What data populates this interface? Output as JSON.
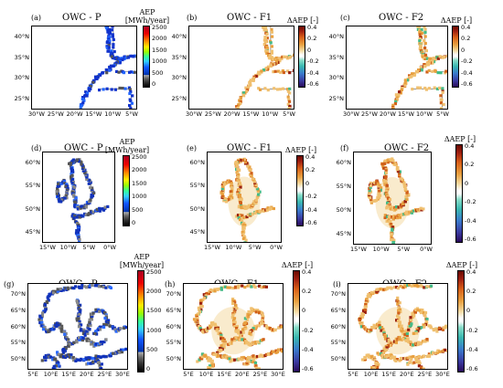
{
  "panels": [
    {
      "id": "a",
      "label": "(a)",
      "title": "OWC - P",
      "kind": "aep",
      "cbar_title": [
        "AEP",
        "[MWh/year]"
      ],
      "cbar_ticks": [
        "2500",
        "2000",
        "1500",
        "1000",
        "500",
        "0"
      ],
      "yticks": [
        "40°N",
        "35°N",
        "30°N",
        "25°N"
      ],
      "xticks": [
        "30°W",
        "25°W",
        "20°W",
        "15°W",
        "10°W",
        "5°W"
      ]
    },
    {
      "id": "b",
      "label": "(b)",
      "title": "OWC - F1",
      "kind": "diff",
      "cbar_title": [
        "ΔAEP [-]"
      ],
      "cbar_ticks": [
        "0.4",
        "0.2",
        "0",
        "-0.2",
        "-0.4",
        "-0.6"
      ],
      "yticks": [
        "40°N",
        "35°N",
        "30°N",
        "25°N"
      ],
      "xticks": [
        "30°W",
        "25°W",
        "20°W",
        "15°W",
        "10°W",
        "5°W"
      ]
    },
    {
      "id": "c",
      "label": "(c)",
      "title": "OWC - F2",
      "kind": "diff",
      "cbar_title": [
        "ΔAEP [-]"
      ],
      "cbar_ticks": [
        "0.4",
        "0.2",
        "0",
        "-0.2",
        "-0.4",
        "-0.6"
      ],
      "yticks": [
        "40°N",
        "35°N",
        "30°N",
        "25°N"
      ],
      "xticks": [
        "30°W",
        "25°W",
        "20°W",
        "15°W",
        "10°W",
        "5°W"
      ]
    },
    {
      "id": "d",
      "label": "(d)",
      "title": "OWC - P",
      "kind": "aep",
      "cbar_title": [
        "AEP",
        "[MWh/year]"
      ],
      "cbar_ticks": [
        "2500",
        "2000",
        "1500",
        "1000",
        "500",
        "0"
      ],
      "yticks": [
        "60°N",
        "55°N",
        "50°N",
        "45°N"
      ],
      "xticks": [
        "15°W",
        "10°W",
        "5°W",
        "0°W"
      ]
    },
    {
      "id": "e",
      "label": "(e)",
      "title": "OWC - F1",
      "kind": "diff",
      "cbar_title": [
        "ΔAEP [-]"
      ],
      "cbar_ticks": [
        "0.4",
        "0.2",
        "0",
        "-0.2",
        "-0.4",
        "-0.6"
      ],
      "yticks": [
        "60°N",
        "55°N",
        "50°N",
        "45°N"
      ],
      "xticks": [
        "15°W",
        "10°W",
        "5°W",
        "0°W"
      ]
    },
    {
      "id": "f",
      "label": "(f)",
      "title": "OWC - F2",
      "kind": "diff",
      "cbar_title": [
        "ΔAEP [-]"
      ],
      "cbar_ticks": [
        "0.4",
        "0.2",
        "0",
        "-0.2",
        "-0.4",
        "-0.6"
      ],
      "yticks": [
        "60°N",
        "55°N",
        "50°N",
        "45°N"
      ],
      "xticks": [
        "15°W",
        "10°W",
        "5°W",
        "0°W"
      ]
    },
    {
      "id": "g",
      "label": "(g)",
      "title": "OWC - P",
      "kind": "aep",
      "cbar_title": [
        "AEP",
        "[MWh/year]"
      ],
      "cbar_ticks": [
        "2500",
        "2000",
        "1500",
        "1000",
        "500",
        "0"
      ],
      "yticks": [
        "70°N",
        "65°N",
        "60°N",
        "55°N",
        "50°N"
      ],
      "xticks": [
        "5°E",
        "10°E",
        "15°E",
        "20°E",
        "25°E",
        "30°E"
      ]
    },
    {
      "id": "h",
      "label": "(h)",
      "title": "OWC - F1",
      "kind": "diff",
      "cbar_title": [
        "ΔAEP [-]"
      ],
      "cbar_ticks": [
        "0.4",
        "0.2",
        "0",
        "-0.2",
        "-0.4",
        "-0.6"
      ],
      "yticks": [
        "70°N",
        "65°N",
        "60°N",
        "55°N",
        "50°N"
      ],
      "xticks": [
        "5°E",
        "10°E",
        "15°E",
        "20°E",
        "25°E",
        "30°E"
      ]
    },
    {
      "id": "i",
      "label": "(i)",
      "title": "OWC - F2",
      "kind": "diff",
      "cbar_title": [
        "ΔAEP [-]"
      ],
      "cbar_ticks": [
        "0.4",
        "0.2",
        "0",
        "-0.2",
        "-0.4",
        "-0.6"
      ],
      "yticks": [
        "70°N",
        "65°N",
        "60°N",
        "55°N",
        "50°N"
      ],
      "xticks": [
        "5°E",
        "10°E",
        "15°E",
        "20°E",
        "25°E",
        "30°E"
      ]
    }
  ],
  "chart_data": [
    {
      "type": "heatmap",
      "panel": "(a)",
      "title": "OWC - P",
      "colorbar_label": "AEP [MWh/year]",
      "colorbar_range": [
        0,
        2500
      ],
      "lat_range": [
        "25°N",
        "40°N"
      ],
      "lon_range": [
        "30°W",
        "5°W"
      ]
    },
    {
      "type": "heatmap",
      "panel": "(b)",
      "title": "OWC - F1",
      "colorbar_label": "ΔAEP [-]",
      "colorbar_range": [
        -0.6,
        0.4
      ],
      "lat_range": [
        "25°N",
        "40°N"
      ],
      "lon_range": [
        "30°W",
        "5°W"
      ]
    },
    {
      "type": "heatmap",
      "panel": "(c)",
      "title": "OWC - F2",
      "colorbar_label": "ΔAEP [-]",
      "colorbar_range": [
        -0.6,
        0.4
      ],
      "lat_range": [
        "25°N",
        "40°N"
      ],
      "lon_range": [
        "30°W",
        "5°W"
      ]
    },
    {
      "type": "heatmap",
      "panel": "(d)",
      "title": "OWC - P",
      "colorbar_label": "AEP [MWh/year]",
      "colorbar_range": [
        0,
        2500
      ],
      "lat_range": [
        "45°N",
        "60°N"
      ],
      "lon_range": [
        "15°W",
        "0°W"
      ]
    },
    {
      "type": "heatmap",
      "panel": "(e)",
      "title": "OWC - F1",
      "colorbar_label": "ΔAEP [-]",
      "colorbar_range": [
        -0.6,
        0.4
      ],
      "lat_range": [
        "45°N",
        "60°N"
      ],
      "lon_range": [
        "15°W",
        "0°W"
      ]
    },
    {
      "type": "heatmap",
      "panel": "(f)",
      "title": "OWC - F2",
      "colorbar_label": "ΔAEP [-]",
      "colorbar_range": [
        -0.6,
        0.4
      ],
      "lat_range": [
        "45°N",
        "60°N"
      ],
      "lon_range": [
        "15°W",
        "0°W"
      ]
    },
    {
      "type": "heatmap",
      "panel": "(g)",
      "title": "OWC - P",
      "colorbar_label": "AEP [MWh/year]",
      "colorbar_range": [
        0,
        2500
      ],
      "lat_range": [
        "50°N",
        "70°N"
      ],
      "lon_range": [
        "5°E",
        "30°E"
      ]
    },
    {
      "type": "heatmap",
      "panel": "(h)",
      "title": "OWC - F1",
      "colorbar_label": "ΔAEP [-]",
      "colorbar_range": [
        -0.6,
        0.4
      ],
      "lat_range": [
        "50°N",
        "70°N"
      ],
      "lon_range": [
        "5°E",
        "30°E"
      ]
    },
    {
      "type": "heatmap",
      "panel": "(i)",
      "title": "OWC - F2",
      "colorbar_label": "ΔAEP [-]",
      "colorbar_range": [
        -0.6,
        0.4
      ],
      "lat_range": [
        "50°N",
        "70°N"
      ],
      "lon_range": [
        "5°E",
        "30°E"
      ]
    }
  ],
  "colors": {
    "coast": "#666666",
    "border": "#000000"
  }
}
